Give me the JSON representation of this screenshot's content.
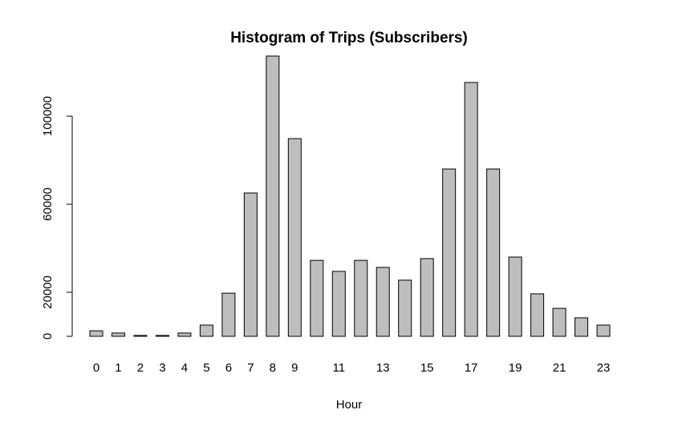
{
  "chart_data": {
    "type": "bar",
    "title": "Histogram of Trips (Subscribers)",
    "x_label": "Hour",
    "categories": [
      "0",
      "1",
      "2",
      "3",
      "4",
      "5",
      "6",
      "7",
      "8",
      "9",
      null,
      "11",
      null,
      "13",
      null,
      "15",
      null,
      "17",
      null,
      "19",
      null,
      "21",
      null,
      "23"
    ],
    "values": [
      2500,
      1500,
      400,
      400,
      1500,
      5100,
      19600,
      65100,
      127300,
      89800,
      34500,
      29500,
      34500,
      31300,
      25500,
      35300,
      76000,
      115300,
      76000,
      36000,
      19300,
      12700,
      8400,
      5100
    ],
    "color": "#bebebe",
    "ylim": [
      0,
      127300
    ],
    "yticks": [
      0,
      20000,
      60000,
      100000
    ],
    "grid": false
  }
}
